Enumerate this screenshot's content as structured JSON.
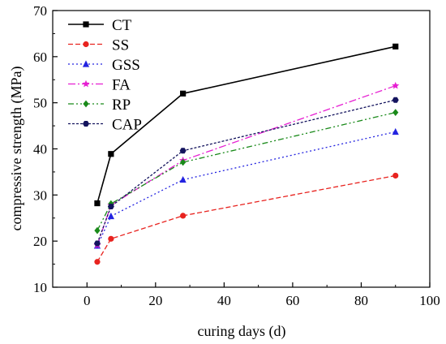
{
  "chart_data": {
    "type": "line",
    "title": "",
    "xlabel": "curing days (d)",
    "ylabel": "compressive strength (MPa)",
    "xlim": [
      -10,
      100
    ],
    "ylim": [
      10,
      70
    ],
    "xticks": [
      0,
      20,
      40,
      60,
      80,
      100
    ],
    "yticks": [
      10,
      20,
      30,
      40,
      50,
      60,
      70
    ],
    "grid": false,
    "legend_position": "top-left",
    "x": [
      3,
      7,
      28,
      90
    ],
    "series": [
      {
        "name": "CT",
        "values": [
          28.2,
          38.9,
          52.0,
          62.2
        ],
        "color": "#000000",
        "dash": "",
        "marker": "square"
      },
      {
        "name": "SS",
        "values": [
          15.5,
          20.5,
          25.5,
          34.2
        ],
        "color": "#e8231f",
        "dash": "6,3",
        "marker": "circle"
      },
      {
        "name": "GSS",
        "values": [
          19.0,
          25.4,
          33.3,
          43.7
        ],
        "color": "#2323e0",
        "dash": "2,3",
        "marker": "triangle"
      },
      {
        "name": "FA",
        "values": [
          19.1,
          27.8,
          37.5,
          53.7
        ],
        "color": "#e61fd2",
        "dash": "9,3,2,3",
        "marker": "star"
      },
      {
        "name": "RP",
        "values": [
          22.3,
          28.1,
          37.1,
          47.9
        ],
        "color": "#1a8a1a",
        "dash": "7,3,2,3,2,3",
        "marker": "diamond"
      },
      {
        "name": "CAP",
        "values": [
          19.5,
          27.5,
          39.6,
          50.6
        ],
        "color": "#14145e",
        "dash": "3,2",
        "marker": "hexagon"
      }
    ]
  }
}
